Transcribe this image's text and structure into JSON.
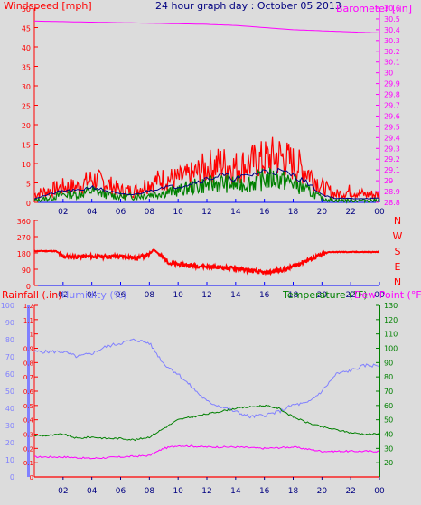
{
  "title": "24 hour graph day : October 05 2013",
  "colors": {
    "background": "#dcdcdc",
    "wind": "#ff0000",
    "gust": "#ff0000",
    "wind_avg": "#008000",
    "wind_mean": "#000080",
    "barometer": "#ff00ff",
    "direction": "#ff0000",
    "rain": "#ff0000",
    "humidity": "#8080ff",
    "temperature": "#008000",
    "dewpoint": "#ff00ff",
    "solar": "#ffff00",
    "title": "#000080"
  },
  "chart_data": [
    {
      "type": "line",
      "name": "wind-barometer",
      "title": "24 hour graph day : October 05 2013",
      "ylabel": "Windspeed [mph]",
      "y2label": "Barometer [.in]",
      "ylim": [
        0,
        50
      ],
      "y2lim": [
        28.8,
        30.6
      ],
      "yticks": [
        "0",
        "5",
        "10",
        "15",
        "20",
        "25",
        "30",
        "35",
        "40",
        "45",
        "50"
      ],
      "y2ticks": [
        "28.8",
        "28.9",
        "29",
        "29.1",
        "29.2",
        "29.3",
        "29.4",
        "29.5",
        "29.6",
        "29.7",
        "29.8",
        "29.9",
        "30",
        "30.1",
        "30.2",
        "30.3",
        "30.4",
        "30.5",
        "30.6"
      ],
      "xticks": [
        "02",
        "04",
        "06",
        "08",
        "10",
        "12",
        "14",
        "16",
        "18",
        "20",
        "22",
        "00"
      ],
      "grid": false,
      "series": [
        {
          "role": "gust",
          "x": [
            0,
            1,
            2,
            3,
            4,
            5,
            6,
            7,
            8,
            9,
            10,
            11,
            12,
            13,
            14,
            15,
            16,
            17,
            18,
            19,
            20,
            21,
            22,
            23,
            24
          ],
          "values": [
            2,
            3,
            4,
            4,
            6,
            5,
            3,
            3,
            5,
            6,
            6,
            7,
            9,
            10,
            9,
            10,
            11,
            12,
            10,
            8,
            4,
            2,
            3,
            2,
            2
          ]
        },
        {
          "role": "wind",
          "x": [
            0,
            1,
            2,
            3,
            4,
            5,
            6,
            7,
            8,
            9,
            10,
            11,
            12,
            13,
            14,
            15,
            16,
            17,
            18,
            19,
            20,
            21,
            22,
            23,
            24
          ],
          "values": [
            1,
            2,
            3,
            3,
            4,
            3,
            2,
            2,
            3,
            4,
            4,
            5,
            6,
            7,
            6,
            7,
            8,
            8,
            7,
            5,
            2,
            1,
            1,
            1,
            1
          ]
        },
        {
          "role": "wind_avg",
          "x": [
            0,
            1,
            2,
            3,
            4,
            5,
            6,
            7,
            8,
            9,
            10,
            11,
            12,
            13,
            14,
            15,
            16,
            17,
            18,
            19,
            20,
            21,
            22,
            23,
            24
          ],
          "values": [
            0.5,
            1,
            2,
            2,
            3,
            2,
            1.5,
            1.5,
            2,
            2.5,
            3,
            4,
            4.5,
            5,
            4.5,
            5,
            6,
            6,
            5,
            3,
            1,
            0.5,
            0.5,
            0.5,
            0.5
          ]
        },
        {
          "role": "barometer",
          "x": [
            0,
            4,
            8,
            12,
            14,
            16,
            18,
            20,
            22,
            24
          ],
          "values": [
            30.48,
            30.47,
            30.46,
            30.45,
            30.44,
            30.42,
            30.4,
            30.39,
            30.38,
            30.37
          ]
        }
      ]
    },
    {
      "type": "line",
      "name": "wind-direction",
      "ylim": [
        0,
        360
      ],
      "yticks": [
        "0",
        "90",
        "180",
        "270",
        "360"
      ],
      "compass": [
        "N",
        "W",
        "S",
        "E",
        "N"
      ],
      "xticks": [
        "02",
        "04",
        "06",
        "08",
        "10",
        "12",
        "14",
        "16",
        "18",
        "20",
        "22",
        "00"
      ],
      "series": [
        {
          "role": "direction",
          "x": [
            0,
            1.5,
            2,
            6.5,
            7,
            8,
            8.3,
            9,
            9.5,
            12,
            14,
            16,
            17.5,
            19,
            20.5,
            24
          ],
          "values": [
            190,
            190,
            160,
            160,
            150,
            170,
            200,
            150,
            120,
            105,
            95,
            70,
            90,
            140,
            185,
            185
          ]
        }
      ]
    },
    {
      "type": "line",
      "name": "rain-humidity-temperature",
      "y1label": "Rainfall (.in)",
      "y2label": "Humidity (%)",
      "y3label": "Temperature (°F)",
      "y4label": "Dew Point (°F)",
      "rain_ylim": [
        0,
        1.2
      ],
      "rain_ticks": [
        "0",
        "0.1",
        "0.2",
        "0.3",
        "0.4",
        "0.5",
        "0.6",
        "0.7",
        "0.8",
        "0.9",
        "1",
        "1.1",
        "1.2"
      ],
      "hum_ylim": [
        0,
        100
      ],
      "hum_ticks": [
        "0",
        "10",
        "20",
        "30",
        "40",
        "50",
        "60",
        "70",
        "80",
        "90",
        "100"
      ],
      "temp_ylim": [
        10,
        130
      ],
      "temp_ticks": [
        "20",
        "30",
        "40",
        "50",
        "60",
        "70",
        "80",
        "90",
        "100",
        "110",
        "120",
        "130"
      ],
      "xticks": [
        "02",
        "04",
        "06",
        "08",
        "10",
        "12",
        "14",
        "16",
        "18",
        "20",
        "22",
        "00"
      ],
      "series": [
        {
          "role": "humidity",
          "x": [
            0,
            1,
            2,
            3,
            4,
            5,
            6,
            7,
            8,
            9,
            10,
            12,
            14,
            15,
            16,
            17,
            18,
            19,
            20,
            21,
            22,
            23,
            24
          ],
          "values": [
            73,
            73,
            73,
            70,
            72,
            76,
            78,
            80,
            78,
            66,
            60,
            44,
            38,
            35,
            36,
            38,
            42,
            43,
            50,
            60,
            62,
            65,
            65
          ]
        },
        {
          "role": "temperature",
          "x": [
            0,
            1,
            2,
            3,
            4,
            5,
            6,
            7,
            8,
            9,
            10,
            12,
            14,
            16,
            17,
            18,
            19,
            20,
            21,
            22,
            23,
            24
          ],
          "values": [
            39,
            39,
            40,
            37,
            38,
            37,
            37,
            36,
            38,
            44,
            50,
            54,
            58,
            60,
            58,
            52,
            48,
            45,
            43,
            41,
            40,
            40
          ]
        },
        {
          "role": "dewpoint",
          "x": [
            0,
            2,
            4,
            6,
            8,
            9,
            10,
            12,
            14,
            16,
            18,
            20,
            22,
            24
          ],
          "values": [
            24,
            24,
            23,
            24,
            25,
            30,
            32,
            31,
            31,
            30,
            31,
            28,
            28,
            28
          ]
        },
        {
          "role": "rain",
          "x": [
            0,
            24
          ],
          "values": [
            0,
            0
          ]
        }
      ]
    }
  ]
}
